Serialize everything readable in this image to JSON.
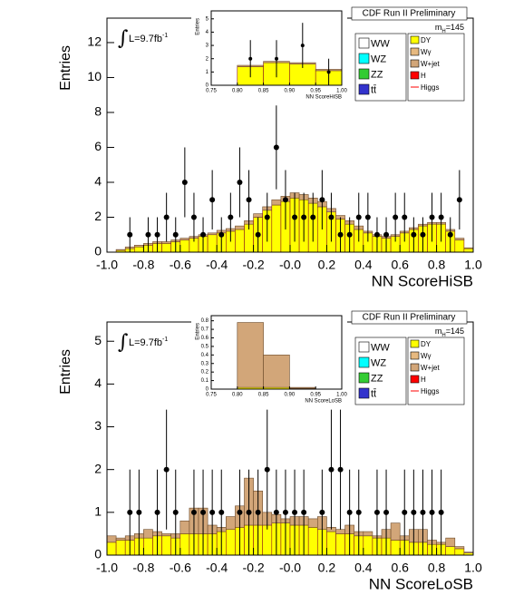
{
  "chart_data": [
    {
      "type": "histogram",
      "title": "CDF Run II Preliminary",
      "lumi_symbol": "∫",
      "lumi": "L=9.7fb",
      "lumi_exp": "-1",
      "mass_label": "m",
      "mass_sub": "H",
      "mass_value": "=145",
      "xlabel": "NN ScoreHiSB",
      "ylabel": "Entries",
      "bins": [
        -1,
        -0.95,
        -0.9,
        -0.85,
        -0.8,
        -0.75,
        -0.7,
        -0.65,
        -0.6,
        -0.55,
        -0.5,
        -0.45,
        -0.4,
        -0.35,
        -0.3,
        -0.25,
        -0.2,
        -0.15,
        -0.1,
        -0.05,
        0,
        0.05,
        0.1,
        0.15,
        0.2,
        0.25,
        0.3,
        0.35,
        0.4,
        0.45,
        0.5,
        0.55,
        0.6,
        0.65,
        0.7,
        0.75,
        0.8,
        0.85,
        0.9,
        0.95,
        1
      ],
      "series": [
        {
          "name": "DY",
          "color": "#ffff00",
          "values": [
            0,
            0.1,
            0.2,
            0.3,
            0.4,
            0.5,
            0.5,
            0.6,
            0.7,
            0.8,
            0.9,
            1.0,
            1.1,
            1.2,
            1.3,
            1.6,
            2.0,
            2.4,
            2.7,
            2.9,
            3.1,
            3.0,
            2.8,
            2.6,
            2.3,
            1.9,
            1.6,
            1.3,
            1.1,
            0.9,
            0.8,
            0.9,
            1.1,
            1.3,
            1.5,
            1.6,
            1.6,
            1.2,
            0.7,
            0.2
          ]
        },
        {
          "name": "W+jet",
          "color": "#d2a679",
          "values": [
            0,
            0.05,
            0.1,
            0.1,
            0.1,
            0.1,
            0.1,
            0.1,
            0.1,
            0.1,
            0.1,
            0.1,
            0.15,
            0.15,
            0.2,
            0.2,
            0.2,
            0.2,
            0.3,
            0.3,
            0.3,
            0.3,
            0.3,
            0.3,
            0.2,
            0.2,
            0.2,
            0.2,
            0.1,
            0.1,
            0.1,
            0.1,
            0.1,
            0.1,
            0.1,
            0.1,
            0.1,
            0.1,
            0.1,
            0.05
          ]
        }
      ],
      "data_points": {
        "x": [
          -0.875,
          -0.775,
          -0.725,
          -0.675,
          -0.625,
          -0.575,
          -0.525,
          -0.475,
          -0.425,
          -0.375,
          -0.325,
          -0.275,
          -0.225,
          -0.175,
          -0.125,
          -0.075,
          -0.025,
          0.025,
          0.075,
          0.125,
          0.175,
          0.225,
          0.275,
          0.325,
          0.375,
          0.425,
          0.475,
          0.525,
          0.575,
          0.625,
          0.675,
          0.725,
          0.775,
          0.825,
          0.875,
          0.925
        ],
        "values": [
          1,
          1,
          1,
          2,
          1,
          4,
          2,
          1,
          3,
          1,
          2,
          4,
          3,
          1,
          2,
          6,
          3,
          2,
          2,
          2,
          3,
          2,
          1,
          1,
          2,
          2,
          1,
          1,
          2,
          2,
          1,
          1,
          2,
          2,
          1,
          3
        ],
        "errors": [
          1,
          1,
          1,
          1.4,
          1,
          2,
          1.4,
          1,
          1.7,
          1,
          1.4,
          2,
          1.7,
          1,
          1.4,
          2.4,
          1.7,
          1.4,
          1.4,
          1.4,
          1.7,
          1.4,
          1,
          1,
          1.4,
          1.4,
          1,
          1,
          1.4,
          1.4,
          1,
          1,
          1.4,
          1.4,
          1,
          1.7
        ]
      },
      "xlim": [
        -1,
        1
      ],
      "ylim": [
        0,
        13.4
      ],
      "xticks": [
        {
          "value": -1,
          "label": "-1.0"
        },
        -0.8,
        -0.6,
        -0.4,
        -0.2,
        {
          "value": 0,
          "label": "-0.0"
        },
        0.2,
        0.4,
        0.6,
        0.8,
        {
          "value": 1,
          "label": "1.0"
        }
      ],
      "yticks": [
        0,
        2,
        4,
        6,
        8,
        10,
        12
      ],
      "legend": [
        {
          "name": "WW",
          "color": "#ffffff"
        },
        {
          "name": "WZ",
          "color": "#00ffff"
        },
        {
          "name": "ZZ",
          "color": "#33cc33"
        },
        {
          "name": "tt̄",
          "color": "#3333cc"
        },
        {
          "name": "DY",
          "color": "#ffff00"
        },
        {
          "name": "Wγ",
          "color": "#e6b980"
        },
        {
          "name": "W+jet",
          "color": "#d2a679"
        },
        {
          "name": "H",
          "color": "#ff0000"
        },
        {
          "name": "Higgs",
          "color": "#ff0000",
          "style": "line"
        }
      ],
      "inset": {
        "type": "histogram",
        "xlabel": "NN ScoreHiSB",
        "ylabel": "Entries",
        "bins": [
          0.75,
          0.8,
          0.85,
          0.9,
          0.95,
          1.0
        ],
        "series": [
          {
            "name": "DY",
            "color": "#ffff00",
            "values": [
              0,
              1.4,
              1.7,
              1.6,
              1.1
            ]
          },
          {
            "name": "W+jet",
            "color": "#d2a679",
            "values": [
              0,
              0.1,
              0.1,
              0.1,
              0.1
            ]
          }
        ],
        "data_points": {
          "x": [
            0.825,
            0.875,
            0.925,
            0.975
          ],
          "values": [
            2,
            2,
            3,
            1
          ],
          "errors": [
            1.4,
            1.4,
            1.7,
            1
          ]
        },
        "xlim": [
          0.75,
          1
        ],
        "ylim": [
          0,
          5.6
        ],
        "xticks": [
          0.75,
          {
            "value": 0.8,
            "label": "0.80"
          },
          0.85,
          {
            "value": 0.9,
            "label": "0.90"
          },
          0.95,
          {
            "value": 1,
            "label": "1.00"
          }
        ],
        "yticks": [
          0,
          1,
          2,
          3,
          4,
          5
        ]
      }
    },
    {
      "type": "histogram",
      "title": "CDF Run II Preliminary",
      "lumi_symbol": "∫",
      "lumi": "L=9.7fb",
      "lumi_exp": "-1",
      "mass_label": "m",
      "mass_sub": "H",
      "mass_value": "=145",
      "xlabel": "NN ScoreLoSB",
      "ylabel": "Entries",
      "bins": [
        -1,
        -0.95,
        -0.9,
        -0.85,
        -0.8,
        -0.75,
        -0.7,
        -0.65,
        -0.6,
        -0.55,
        -0.5,
        -0.45,
        -0.4,
        -0.35,
        -0.3,
        -0.25,
        -0.2,
        -0.15,
        -0.1,
        -0.05,
        0,
        0.05,
        0.1,
        0.15,
        0.2,
        0.25,
        0.3,
        0.35,
        0.4,
        0.45,
        0.5,
        0.55,
        0.6,
        0.65,
        0.7,
        0.75,
        0.8,
        0.85,
        0.9,
        0.95,
        1
      ],
      "series": [
        {
          "name": "DY",
          "color": "#ffff00",
          "values": [
            0.3,
            0.35,
            0.35,
            0.4,
            0.4,
            0.45,
            0.45,
            0.4,
            0.5,
            0.5,
            0.5,
            0.5,
            0.55,
            0.6,
            0.65,
            0.7,
            0.7,
            0.7,
            0.75,
            0.75,
            0.7,
            0.7,
            0.65,
            0.6,
            0.55,
            0.5,
            0.5,
            0.45,
            0.45,
            0.4,
            0.4,
            0.35,
            0.35,
            0.3,
            0.3,
            0.25,
            0.25,
            0.2,
            0.15,
            0.05
          ]
        },
        {
          "name": "W+jet",
          "color": "#d2a679",
          "values": [
            0.15,
            0.05,
            0.1,
            0.1,
            0.2,
            0.1,
            0.05,
            0.1,
            0.3,
            0.6,
            0.6,
            0.2,
            0.1,
            0.3,
            0.5,
            1.1,
            0.8,
            0.3,
            0.2,
            0.1,
            0.2,
            0.2,
            0.2,
            0.3,
            0.1,
            0.1,
            0.2,
            0.1,
            0.1,
            0.05,
            0.2,
            0.4,
            0.1,
            0.3,
            0.3,
            0.1,
            0.05,
            0.2,
            0.05,
            0.02
          ]
        }
      ],
      "data_points": {
        "x": [
          -0.875,
          -0.825,
          -0.725,
          -0.675,
          -0.625,
          -0.525,
          -0.475,
          -0.425,
          -0.375,
          -0.275,
          -0.225,
          -0.175,
          -0.125,
          -0.075,
          -0.025,
          0.025,
          0.075,
          0.175,
          0.225,
          0.275,
          0.325,
          0.375,
          0.475,
          0.525,
          0.625,
          0.675,
          0.725,
          0.775,
          0.825
        ],
        "values": [
          1,
          1,
          1,
          2,
          1,
          1,
          1,
          1,
          1,
          1,
          1,
          1,
          2,
          1,
          1,
          1,
          1,
          1,
          2,
          2,
          1,
          1,
          1,
          1,
          1,
          1,
          1,
          1,
          1
        ],
        "errors": [
          1,
          1,
          1,
          1.4,
          1,
          1,
          1,
          1,
          1,
          1,
          1,
          1,
          1.4,
          1,
          1,
          1,
          1,
          1,
          1.4,
          1.4,
          1,
          1,
          1,
          1,
          1,
          1,
          1,
          1,
          1
        ]
      },
      "xlim": [
        -1,
        1
      ],
      "ylim": [
        0,
        5.45
      ],
      "xticks": [
        {
          "value": -1,
          "label": "-1.0"
        },
        -0.8,
        -0.6,
        -0.4,
        -0.2,
        {
          "value": 0,
          "label": "-0.0"
        },
        0.2,
        0.4,
        0.6,
        0.8,
        {
          "value": 1,
          "label": "1.0"
        }
      ],
      "yticks": [
        0,
        1,
        2,
        3,
        4,
        5
      ],
      "legend": [
        {
          "name": "WW",
          "color": "#ffffff"
        },
        {
          "name": "WZ",
          "color": "#00ffff"
        },
        {
          "name": "ZZ",
          "color": "#33cc33"
        },
        {
          "name": "tt̄",
          "color": "#3333cc"
        },
        {
          "name": "DY",
          "color": "#ffff00"
        },
        {
          "name": "Wγ",
          "color": "#e6b980"
        },
        {
          "name": "W+jet",
          "color": "#d2a679"
        },
        {
          "name": "H",
          "color": "#ff0000"
        },
        {
          "name": "Higgs",
          "color": "#ff0000",
          "style": "line"
        }
      ],
      "inset": {
        "type": "histogram",
        "xlabel": "NN ScoreLoSB",
        "ylabel": "Entries",
        "bins": [
          0.75,
          0.8,
          0.85,
          0.9,
          0.95,
          1.0
        ],
        "series": [
          {
            "name": "DY",
            "color": "#ffff00",
            "values": [
              0,
              0.02,
              0.02,
              0.01,
              0
            ]
          },
          {
            "name": "W+jet",
            "color": "#d2a679",
            "values": [
              0,
              0.76,
              0.38,
              0.01,
              0
            ]
          }
        ],
        "xlim": [
          0.75,
          1
        ],
        "ylim": [
          0,
          0.86
        ],
        "xticks": [
          0.75,
          {
            "value": 0.8,
            "label": "0.80"
          },
          0.85,
          {
            "value": 0.9,
            "label": "0.90"
          },
          0.95,
          {
            "value": 1,
            "label": "1.00"
          }
        ],
        "yticks": [
          0,
          0.1,
          0.2,
          0.3,
          0.4,
          0.5,
          0.6,
          0.7,
          0.8
        ]
      }
    }
  ]
}
